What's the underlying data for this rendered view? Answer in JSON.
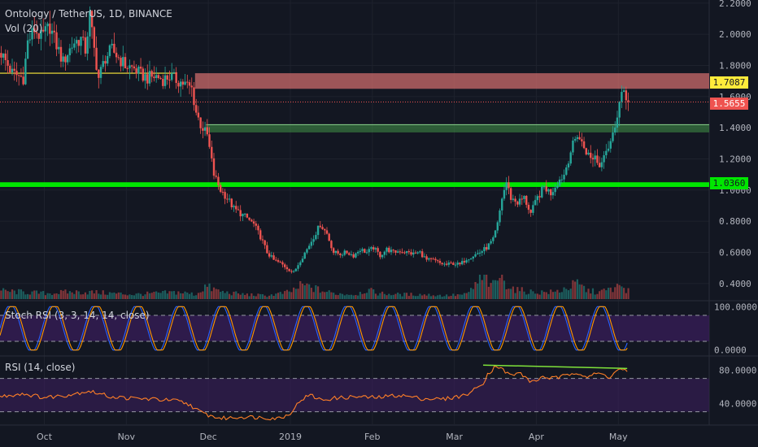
{
  "header": {
    "title": "Ontology / TetherUS, 1D, BINANCE",
    "volume_label": "Vol (20)",
    "stoch_label": "Stoch RSI (3, 3, 14, 14, close)",
    "rsi_label": "RSI (14, close)"
  },
  "colors": {
    "background": "#131722",
    "up": "#26a69a",
    "down": "#ef5350",
    "resistance_zone": "#d9706f",
    "support_zone": "#4caf50",
    "support_line": "#00e600",
    "yellow_line": "#ffeb3b",
    "stoch_k": "#2962ff",
    "stoch_d": "#ff9800",
    "rsi_line": "#ff7f27",
    "panel_band": "#3b1e5c",
    "divergence_line": "#7fe33a"
  },
  "price_tags": {
    "resistance": "1.7087",
    "last": "1.5655",
    "support": "1.0360"
  },
  "chart_data": [
    {
      "type": "candlestick",
      "title": "",
      "x": [
        "Oct",
        "Nov",
        "Dec",
        "2019",
        "Feb",
        "Mar",
        "Apr",
        "May"
      ],
      "ylim": [
        0.3,
        2.22
      ],
      "yticks": [
        "2.2000",
        "2.0000",
        "1.8000",
        "1.6000",
        "1.4000",
        "1.2000",
        "1.0000",
        "0.8000",
        "0.6000",
        "0.4000"
      ],
      "ytick_values": [
        2.2,
        2.0,
        1.8,
        1.6,
        1.4,
        1.2,
        1.0,
        0.8,
        0.6,
        0.4
      ],
      "close_path": [
        [
          0,
          1.88
        ],
        [
          5,
          1.75
        ],
        [
          10,
          1.72
        ],
        [
          12,
          1.95
        ],
        [
          15,
          2.03
        ],
        [
          18,
          1.98
        ],
        [
          22,
          2.05
        ],
        [
          25,
          1.93
        ],
        [
          28,
          1.82
        ],
        [
          30,
          1.88
        ],
        [
          33,
          1.95
        ],
        [
          36,
          1.97
        ],
        [
          38,
          1.9
        ],
        [
          40,
          2.12
        ],
        [
          42,
          1.9
        ],
        [
          44,
          1.72
        ],
        [
          47,
          1.85
        ],
        [
          50,
          1.9
        ],
        [
          53,
          1.85
        ],
        [
          56,
          1.8
        ],
        [
          60,
          1.78
        ],
        [
          63,
          1.74
        ],
        [
          66,
          1.72
        ],
        [
          70,
          1.73
        ],
        [
          73,
          1.71
        ],
        [
          76,
          1.73
        ],
        [
          80,
          1.7
        ],
        [
          83,
          1.68
        ],
        [
          86,
          1.65
        ],
        [
          88,
          1.5
        ],
        [
          90,
          1.42
        ],
        [
          93,
          1.35
        ],
        [
          96,
          1.1
        ],
        [
          99,
          1.0
        ],
        [
          102,
          0.95
        ],
        [
          105,
          0.88
        ],
        [
          108,
          0.85
        ],
        [
          111,
          0.82
        ],
        [
          114,
          0.78
        ],
        [
          117,
          0.7
        ],
        [
          120,
          0.6
        ],
        [
          123,
          0.55
        ],
        [
          126,
          0.53
        ],
        [
          129,
          0.5
        ],
        [
          132,
          0.47
        ],
        [
          135,
          0.55
        ],
        [
          138,
          0.62
        ],
        [
          141,
          0.7
        ],
        [
          144,
          0.78
        ],
        [
          147,
          0.72
        ],
        [
          150,
          0.6
        ],
        [
          153,
          0.59
        ],
        [
          156,
          0.6
        ],
        [
          159,
          0.58
        ],
        [
          162,
          0.62
        ],
        [
          165,
          0.6
        ],
        [
          168,
          0.63
        ],
        [
          171,
          0.58
        ],
        [
          174,
          0.62
        ],
        [
          177,
          0.6
        ],
        [
          180,
          0.61
        ],
        [
          183,
          0.6
        ],
        [
          186,
          0.59
        ],
        [
          189,
          0.6
        ],
        [
          192,
          0.55
        ],
        [
          195,
          0.55
        ],
        [
          198,
          0.53
        ],
        [
          201,
          0.52
        ],
        [
          204,
          0.53
        ],
        [
          207,
          0.52
        ],
        [
          210,
          0.56
        ],
        [
          213,
          0.58
        ],
        [
          216,
          0.6
        ],
        [
          219,
          0.63
        ],
        [
          222,
          0.68
        ],
        [
          224,
          0.78
        ],
        [
          226,
          0.95
        ],
        [
          228,
          1.05
        ],
        [
          230,
          0.95
        ],
        [
          233,
          0.92
        ],
        [
          236,
          0.95
        ],
        [
          239,
          0.85
        ],
        [
          242,
          0.95
        ],
        [
          245,
          1.02
        ],
        [
          248,
          0.98
        ],
        [
          251,
          1.05
        ],
        [
          254,
          1.1
        ],
        [
          257,
          1.25
        ],
        [
          260,
          1.36
        ],
        [
          262,
          1.3
        ],
        [
          264,
          1.25
        ],
        [
          266,
          1.2
        ],
        [
          268,
          1.22
        ],
        [
          270,
          1.15
        ],
        [
          272,
          1.25
        ],
        [
          274,
          1.28
        ],
        [
          276,
          1.35
        ],
        [
          278,
          1.5
        ],
        [
          280,
          1.62
        ],
        [
          282,
          1.58
        ],
        [
          283,
          1.5655
        ]
      ],
      "volume_path": [
        [
          0,
          0.35
        ],
        [
          10,
          0.3
        ],
        [
          20,
          0.25
        ],
        [
          30,
          0.3
        ],
        [
          40,
          0.3
        ],
        [
          50,
          0.25
        ],
        [
          60,
          0.2
        ],
        [
          70,
          0.25
        ],
        [
          80,
          0.3
        ],
        [
          88,
          0.2
        ],
        [
          92,
          0.55
        ],
        [
          95,
          0.45
        ],
        [
          100,
          0.3
        ],
        [
          110,
          0.2
        ],
        [
          120,
          0.15
        ],
        [
          130,
          0.3
        ],
        [
          136,
          0.6
        ],
        [
          140,
          0.5
        ],
        [
          145,
          0.35
        ],
        [
          150,
          0.25
        ],
        [
          160,
          0.2
        ],
        [
          165,
          0.4
        ],
        [
          170,
          0.25
        ],
        [
          180,
          0.2
        ],
        [
          190,
          0.2
        ],
        [
          200,
          0.15
        ],
        [
          210,
          0.2
        ],
        [
          216,
          0.8
        ],
        [
          219,
          0.95
        ],
        [
          221,
          0.5
        ],
        [
          225,
          1.0
        ],
        [
          228,
          0.7
        ],
        [
          232,
          0.4
        ],
        [
          240,
          0.3
        ],
        [
          250,
          0.3
        ],
        [
          260,
          0.65
        ],
        [
          265,
          0.35
        ],
        [
          270,
          0.3
        ],
        [
          276,
          0.45
        ],
        [
          280,
          0.55
        ],
        [
          283,
          0.35
        ]
      ],
      "time_axis_days": 320,
      "levels": [
        {
          "name": "resistance-zone",
          "low": 1.65,
          "high": 1.75
        },
        {
          "name": "support-zone",
          "low": 1.37,
          "high": 1.42
        },
        {
          "name": "support-line",
          "low": 1.02,
          "high": 1.05
        },
        {
          "name": "yellow-line",
          "value": 1.75
        }
      ]
    },
    {
      "type": "line",
      "title": "Stoch RSI (3, 3, 14, 14, close)",
      "ylim": [
        -10,
        110
      ],
      "yticks": [
        "100.0000",
        "0.0000"
      ],
      "ytick_values": [
        100,
        0
      ],
      "bands": [
        80,
        20
      ],
      "series": [
        {
          "name": "K",
          "period_days": 19,
          "phase": 0.0
        },
        {
          "name": "D",
          "period_days": 19,
          "phase": 0.5
        }
      ]
    },
    {
      "type": "line",
      "title": "RSI (14, close)",
      "ylim": [
        15,
        95
      ],
      "yticks": [
        "80.0000",
        "40.0000"
      ],
      "ytick_values": [
        80,
        40
      ],
      "bands": [
        70,
        30
      ],
      "path": [
        [
          0,
          48
        ],
        [
          10,
          52
        ],
        [
          20,
          47
        ],
        [
          30,
          50
        ],
        [
          40,
          55
        ],
        [
          50,
          48
        ],
        [
          60,
          46
        ],
        [
          70,
          45
        ],
        [
          80,
          43
        ],
        [
          86,
          38
        ],
        [
          90,
          30
        ],
        [
          95,
          25
        ],
        [
          100,
          22
        ],
        [
          110,
          24
        ],
        [
          120,
          23
        ],
        [
          125,
          22
        ],
        [
          130,
          26
        ],
        [
          133,
          35
        ],
        [
          136,
          45
        ],
        [
          140,
          50
        ],
        [
          145,
          44
        ],
        [
          150,
          46
        ],
        [
          160,
          48
        ],
        [
          170,
          47
        ],
        [
          180,
          50
        ],
        [
          190,
          46
        ],
        [
          200,
          45
        ],
        [
          210,
          50
        ],
        [
          215,
          58
        ],
        [
          218,
          65
        ],
        [
          220,
          75
        ],
        [
          222,
          80
        ],
        [
          224,
          86
        ],
        [
          226,
          82
        ],
        [
          230,
          74
        ],
        [
          235,
          76
        ],
        [
          240,
          65
        ],
        [
          245,
          72
        ],
        [
          250,
          70
        ],
        [
          255,
          73
        ],
        [
          260,
          78
        ],
        [
          265,
          72
        ],
        [
          270,
          76
        ],
        [
          275,
          72
        ],
        [
          280,
          82
        ],
        [
          283,
          78
        ]
      ],
      "divergence": [
        [
          218,
          86
        ],
        [
          283,
          82
        ]
      ]
    }
  ],
  "x_labels": [
    {
      "label": "Oct",
      "day": 20
    },
    {
      "label": "Nov",
      "day": 57
    },
    {
      "label": "Dec",
      "day": 94
    },
    {
      "label": "2019",
      "day": 131
    },
    {
      "label": "Feb",
      "day": 168
    },
    {
      "label": "Mar",
      "day": 205
    },
    {
      "label": "Apr",
      "day": 242
    },
    {
      "label": "May",
      "day": 279
    }
  ]
}
